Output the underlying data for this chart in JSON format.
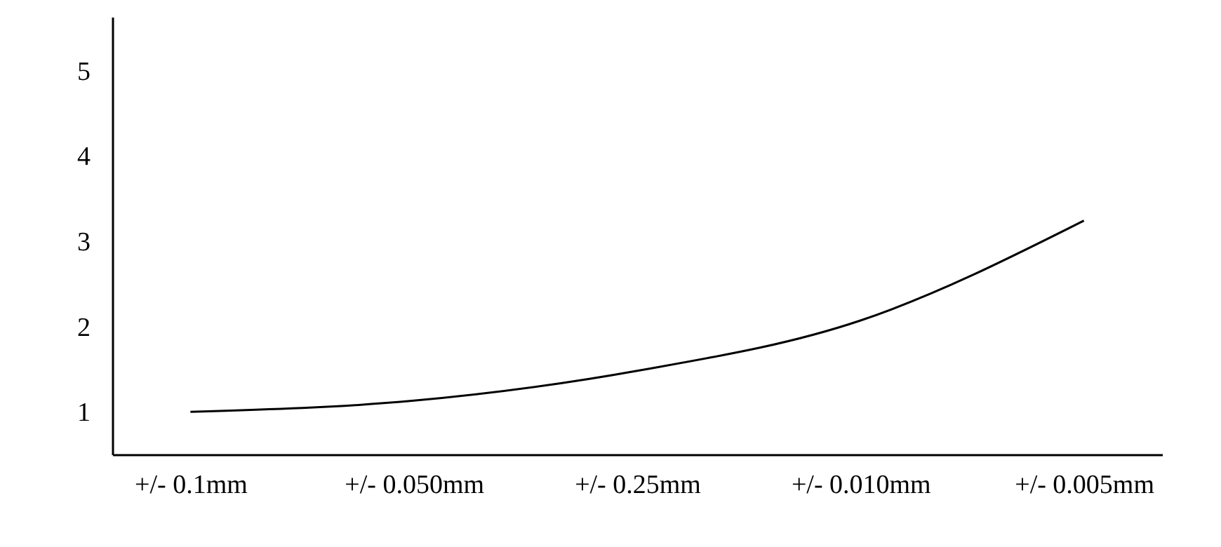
{
  "chart_data": {
    "type": "line",
    "categories": [
      "+/- 0.1mm",
      "+/- 0.050mm",
      "+/- 0.25mm",
      "+/- 0.010mm",
      "+/- 0.005mm"
    ],
    "series": [
      {
        "color": "#000000",
        "values": [
          1.0,
          1.13,
          1.48,
          2.07,
          3.24
        ]
      }
    ],
    "ylim": [
      0.5,
      5.63
    ],
    "yticks": [
      1,
      2,
      3,
      4,
      5
    ]
  }
}
